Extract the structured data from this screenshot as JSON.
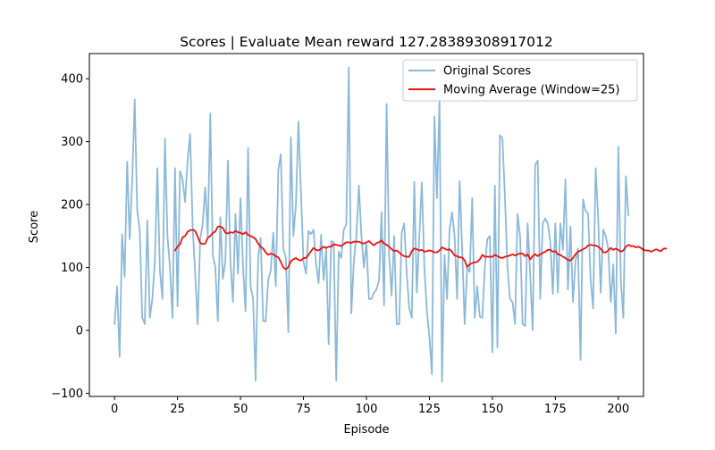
{
  "chart_data": {
    "type": "line",
    "title": "Scores | Evaluate Mean reward 127.28389308917012",
    "xlabel": "Episode",
    "ylabel": "Score",
    "xlim": [
      -10,
      210
    ],
    "ylim": [
      -105,
      440
    ],
    "xticks": [
      0,
      25,
      50,
      75,
      100,
      125,
      150,
      175,
      200
    ],
    "yticks": [
      -100,
      0,
      100,
      200,
      300,
      400
    ],
    "ytick_labels": [
      "−100",
      "0",
      "100",
      "200",
      "300",
      "400"
    ],
    "grid": false,
    "legend_position": "top-right",
    "series": [
      {
        "name": "Original Scores",
        "color": "#8bb9d9",
        "x_start": 0,
        "values": [
          10,
          70,
          -42,
          153,
          85,
          268,
          145,
          240,
          367,
          190,
          160,
          20,
          10,
          175,
          20,
          50,
          110,
          258,
          95,
          50,
          305,
          150,
          100,
          20,
          258,
          38,
          253,
          240,
          204,
          270,
          312,
          165,
          90,
          10,
          145,
          170,
          227,
          150,
          345,
          120,
          100,
          15,
          180,
          82,
          110,
          270,
          110,
          45,
          185,
          90,
          210,
          100,
          30,
          290,
          70,
          50,
          -80,
          115,
          147,
          15,
          14,
          80,
          95,
          155,
          70,
          255,
          280,
          130,
          115,
          -3,
          307,
          150,
          200,
          332,
          220,
          110,
          90,
          158,
          153,
          160,
          105,
          75,
          152,
          80,
          130,
          -22,
          142,
          140,
          -80,
          125,
          115,
          160,
          168,
          418,
          27,
          110,
          150,
          230,
          150,
          100,
          140,
          50,
          50,
          60,
          65,
          80,
          188,
          40,
          360,
          120,
          55,
          150,
          10,
          10,
          155,
          170,
          90,
          35,
          20,
          236,
          60,
          150,
          235,
          100,
          30,
          -10,
          -70,
          340,
          210,
          368,
          -82,
          120,
          50,
          160,
          188,
          150,
          50,
          237,
          130,
          10,
          100,
          93,
          210,
          20,
          70,
          22,
          20,
          100,
          145,
          150,
          -35,
          230,
          -27,
          310,
          305,
          210,
          100,
          50,
          45,
          10,
          185,
          150,
          10,
          7,
          170,
          90,
          0,
          263,
          270,
          50,
          170,
          178,
          170,
          140,
          58,
          170,
          60,
          170,
          128,
          240,
          65,
          165,
          45,
          110,
          130,
          -47,
          208,
          190,
          185,
          80,
          35,
          258,
          180,
          60,
          160,
          150,
          130,
          45,
          105,
          -5,
          292,
          80,
          20,
          245,
          183
        ]
      },
      {
        "name": "Moving Average (Window=25)",
        "color": "#ee1111",
        "x_start": 24,
        "values": [
          127,
          133,
          137,
          148,
          150,
          157,
          159,
          160,
          158,
          149,
          139,
          137,
          138,
          147,
          150,
          155,
          157,
          165,
          165,
          163,
          155,
          154,
          156,
          155,
          158,
          156,
          155,
          153,
          156,
          152,
          150,
          148,
          145,
          138,
          133,
          130,
          124,
          120,
          122,
          121,
          118,
          116,
          109,
          100,
          97,
          101,
          110,
          113,
          115,
          112,
          111,
          115,
          115,
          120,
          126,
          131,
          128,
          127,
          130,
          133,
          131,
          133,
          133,
          137,
          136,
          135,
          134,
          137,
          140,
          140,
          139,
          141,
          141,
          141,
          139,
          138,
          140,
          142,
          138,
          135,
          139,
          140,
          143,
          138,
          136,
          133,
          129,
          126,
          127,
          124,
          120,
          118,
          117,
          117,
          126,
          130,
          129,
          127,
          128,
          125,
          126,
          127,
          126,
          124,
          124,
          127,
          132,
          130,
          128,
          129,
          125,
          119,
          118,
          116,
          116,
          111,
          101,
          105,
          107,
          108,
          109,
          113,
          120,
          117,
          117,
          117,
          117,
          120,
          118,
          116,
          115,
          117,
          118,
          119,
          121,
          119,
          121,
          122,
          122,
          118,
          121,
          113,
          118,
          121,
          118,
          121,
          123,
          125,
          128,
          128,
          125,
          126,
          121,
          120,
          117,
          115,
          112,
          111,
          115,
          121,
          125,
          127,
          129,
          131,
          135,
          136,
          135,
          135,
          133,
          130,
          124,
          124,
          127,
          131,
          128,
          130,
          128,
          125,
          127,
          133,
          136,
          134,
          134,
          132,
          133,
          131,
          128,
          127,
          127,
          125,
          127,
          129,
          127,
          126,
          130,
          130
        ]
      }
    ]
  }
}
